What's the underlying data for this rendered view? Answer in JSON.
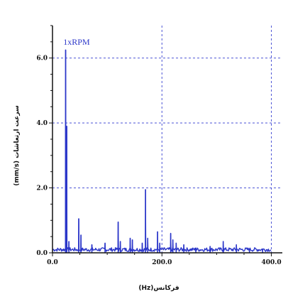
{
  "chart_data": {
    "type": "line",
    "title": "",
    "xlabel": "فرکانس(Hz)",
    "ylabel": "سرعت ارتعاشات (mm/s)",
    "xlim": [
      0,
      420
    ],
    "ylim": [
      0,
      7.0
    ],
    "x_ticks": [
      0,
      200,
      400
    ],
    "x_tick_labels": [
      "0.0",
      "200.0",
      "400.0"
    ],
    "y_ticks": [
      0,
      2,
      4,
      6
    ],
    "y_tick_labels": [
      "0.0",
      "2.0",
      "4.0",
      "6.0"
    ],
    "grid": true,
    "annotations": [
      {
        "text": "1xRPM",
        "x": 25,
        "y": 6.5
      }
    ],
    "series": [
      {
        "color": "#2b36c9",
        "peaks": [
          {
            "x": 24,
            "y": 6.25
          },
          {
            "x": 26,
            "y": 3.9
          },
          {
            "x": 30,
            "y": 0.35
          },
          {
            "x": 48,
            "y": 1.05
          },
          {
            "x": 52,
            "y": 0.55
          },
          {
            "x": 72,
            "y": 0.25
          },
          {
            "x": 96,
            "y": 0.3
          },
          {
            "x": 120,
            "y": 0.95
          },
          {
            "x": 124,
            "y": 0.35
          },
          {
            "x": 142,
            "y": 0.45
          },
          {
            "x": 146,
            "y": 0.4
          },
          {
            "x": 164,
            "y": 0.3
          },
          {
            "x": 170,
            "y": 1.95
          },
          {
            "x": 174,
            "y": 0.45
          },
          {
            "x": 192,
            "y": 0.65
          },
          {
            "x": 196,
            "y": 0.3
          },
          {
            "x": 216,
            "y": 0.6
          },
          {
            "x": 220,
            "y": 0.4
          },
          {
            "x": 226,
            "y": 0.3
          },
          {
            "x": 240,
            "y": 0.25
          },
          {
            "x": 262,
            "y": 0.15
          },
          {
            "x": 288,
            "y": 0.2
          },
          {
            "x": 312,
            "y": 0.35
          },
          {
            "x": 336,
            "y": 0.25
          },
          {
            "x": 360,
            "y": 0.1
          },
          {
            "x": 384,
            "y": 0.1
          }
        ]
      }
    ]
  },
  "colors": {
    "line": "#2b36c9",
    "grid": "#4a52d6",
    "axis": "#111111"
  }
}
